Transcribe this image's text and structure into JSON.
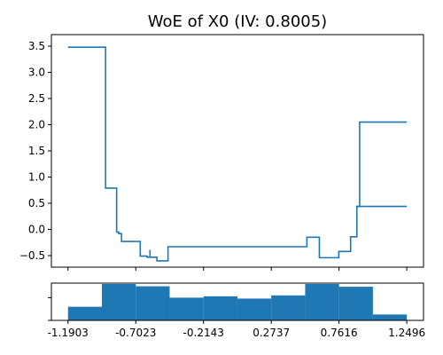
{
  "chart_data": [
    {
      "type": "line",
      "title": "WoE of X0 (IV: 0.8005)",
      "xlabel": "",
      "ylabel": "",
      "step": true,
      "xlim": [
        -1.31,
        1.37
      ],
      "ylim": [
        -0.72,
        3.72
      ],
      "grid": false,
      "yticks": [
        -0.5,
        0.0,
        0.5,
        1.0,
        1.5,
        2.0,
        2.5,
        3.0,
        3.5
      ],
      "ytick_labels": [
        "−0.5",
        "0.0",
        "0.5",
        "1.0",
        "1.5",
        "2.0",
        "2.5",
        "3.0",
        "3.5"
      ],
      "xticks": [
        -1.1903,
        -0.7023,
        -0.2143,
        0.2737,
        0.7616,
        1.2496
      ],
      "series": [
        {
          "x": [
            -1.1903,
            -0.92,
            -0.92,
            -0.84,
            -0.84,
            -0.825,
            -0.825,
            -0.805,
            -0.805,
            -0.67,
            -0.67,
            -0.62,
            -0.62,
            -0.55,
            -0.55,
            -0.47,
            -0.47,
            0.53,
            0.53,
            0.62,
            0.62,
            0.76,
            0.76,
            0.845,
            0.845,
            0.89,
            0.89,
            1.2496
          ],
          "y": [
            3.48,
            3.48,
            0.79,
            0.79,
            -0.05,
            -0.05,
            -0.08,
            -0.08,
            -0.23,
            -0.23,
            -0.51,
            -0.51,
            -0.53,
            -0.53,
            -0.6,
            -0.6,
            -0.33,
            -0.33,
            -0.15,
            -0.15,
            -0.54,
            -0.54,
            -0.42,
            -0.42,
            -0.14,
            -0.14,
            0.44,
            0.44
          ]
        }
      ],
      "extra_segments": [
        {
          "x": [
            0.89,
            0.91,
            0.91,
            1.2496
          ],
          "y": [
            0.44,
            0.44,
            2.05,
            2.05
          ]
        },
        {
          "x": [
            -0.6,
            -0.6
          ],
          "y": [
            -0.53,
            -0.39
          ]
        }
      ],
      "color": "#1f77b4"
    },
    {
      "type": "bar",
      "title": "",
      "xlabel": "",
      "ylabel": "",
      "xlim": [
        -1.31,
        1.37
      ],
      "ylim": [
        0,
        0.82
      ],
      "bin_edges": [
        -1.1903,
        -0.9463,
        -0.7023,
        -0.4583,
        -0.2143,
        0.0297,
        0.2737,
        0.5177,
        0.7616,
        1.0056,
        1.2496
      ],
      "values": [
        0.3,
        0.8,
        0.75,
        0.5,
        0.53,
        0.48,
        0.55,
        0.8,
        0.74,
        0.13
      ],
      "xticks": [
        -1.1903,
        -0.7023,
        -0.2143,
        0.2737,
        0.7616,
        1.2496
      ],
      "xtick_labels": [
        "-1.1903",
        "-0.7023",
        "-0.2143",
        "0.2737",
        "0.7616",
        "1.2496"
      ],
      "color": "#1f77b4"
    }
  ]
}
